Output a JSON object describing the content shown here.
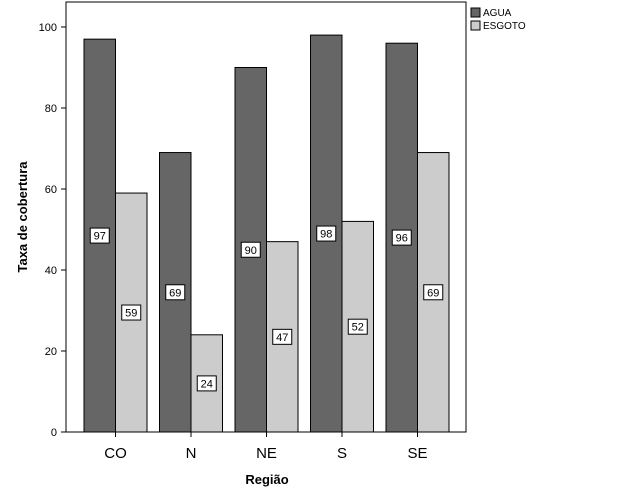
{
  "chart_data": {
    "type": "bar",
    "categories": [
      "CO",
      "N",
      "NE",
      "S",
      "SE"
    ],
    "series": [
      {
        "name": "AGUA",
        "values": [
          97,
          69,
          90,
          98,
          96
        ],
        "color": "#666666"
      },
      {
        "name": "ESGOTO",
        "values": [
          59,
          24,
          47,
          52,
          69
        ],
        "color": "#cccccc"
      }
    ],
    "title": "",
    "xlabel": "Região",
    "ylabel": "Taxa de cobertura",
    "ylim": [
      0,
      100
    ],
    "yticks": [
      0,
      20,
      40,
      60,
      80,
      100
    ],
    "grid": false,
    "legend_position": "top-right",
    "data_labels": true
  }
}
